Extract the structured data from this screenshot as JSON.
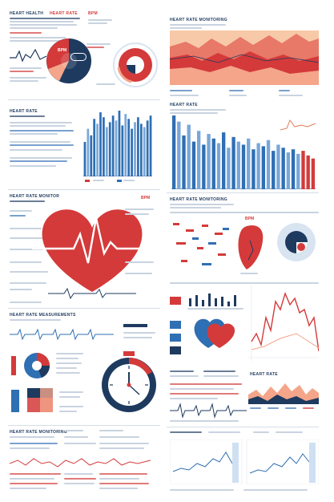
{
  "headers": {
    "top_left_1": "HEART HEALTH",
    "top_left_2": "HEART RATE",
    "top_left_3": "BPM",
    "top_right": "HEART RATE MONITORING",
    "mid_left": "HEART RATE",
    "mid_right": "HEART RATE",
    "heart_left": "HEART RATE MONITOR",
    "heart_right": "HEART RATE MONITORING",
    "bottom_left": "HEART RATE MEASUREMENTS",
    "bottom_left_2": "HEART RATE MONITORING",
    "bottom_right": "HEART RATE"
  },
  "donut_label": "BPM",
  "bar_chart_left": [
    42,
    58,
    50,
    70,
    64,
    78,
    72,
    60,
    66,
    74,
    68,
    80,
    62,
    76,
    70,
    58,
    66,
    72,
    64,
    60,
    68,
    74
  ],
  "bar_chart_right": [
    96,
    88,
    70,
    84,
    62,
    76,
    58,
    72,
    66,
    60,
    74,
    54,
    68,
    62,
    58,
    66,
    52,
    60,
    56,
    64,
    50,
    58,
    54,
    48,
    52,
    46,
    50,
    44,
    40
  ],
  "colors": {
    "navy": "#1e3a5f",
    "blue": "#2f6fb3",
    "light_blue": "#7aa7d8",
    "red": "#d43a3a",
    "salmon": "#f4a58a",
    "peach": "#f7c9a8"
  },
  "icons": [
    "heart-icon",
    "stopwatch-icon",
    "pie-chart-icon",
    "gauge-icon",
    "map-icon"
  ]
}
